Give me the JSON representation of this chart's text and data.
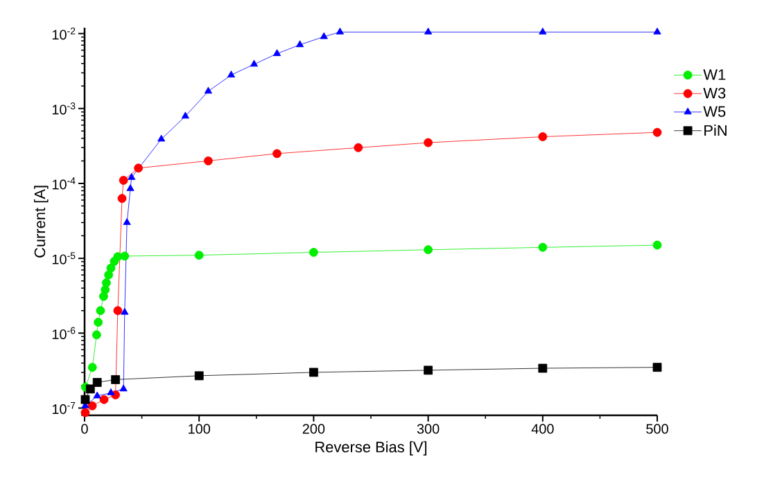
{
  "chart_data": {
    "type": "line",
    "xlabel": "Reverse Bias  [V]",
    "ylabel": "Current  [A]",
    "log": "y",
    "legend": "right",
    "line_style": "solid",
    "xlim": [
      0,
      500
    ],
    "xticks": [
      0,
      100,
      200,
      300,
      400,
      500
    ],
    "ylim": [
      8e-08,
      0.012
    ],
    "yticks": [
      {
        "value": 1e-07,
        "label": "10$^{-7}$"
      },
      {
        "value": 1e-06,
        "label": "10$^{-6}$"
      },
      {
        "value": 1e-05,
        "label": "10$^{-5}$"
      },
      {
        "value": 0.0001,
        "label": "10$^{-4}$"
      },
      {
        "value": 0.001,
        "label": "10$^{-3}$"
      },
      {
        "value": 0.01,
        "label": "10$^{-2}$"
      }
    ],
    "series": [
      {
        "name": "W1",
        "color": "#00ee00",
        "marker": "circle",
        "x": [
          0.8,
          6.8,
          10.5,
          11.9,
          13.9,
          16.6,
          18,
          19,
          21,
          23,
          26,
          29,
          35,
          100,
          200,
          300,
          400,
          500
        ],
        "values": [
          1.9e-07,
          3.5e-07,
          9.5e-07,
          1.4e-06,
          2e-06,
          3.1e-06,
          3.8e-06,
          4.7e-06,
          6e-06,
          7.4e-06,
          9.1e-06,
          1.05e-05,
          1.07e-05,
          1.1e-05,
          1.2e-05,
          1.3e-05,
          1.4e-05,
          1.5e-05
        ]
      },
      {
        "name": "W3",
        "color": "#ff0000",
        "marker": "circle",
        "x": [
          0.6,
          6.7,
          17,
          27,
          29,
          32.7,
          34,
          47,
          108,
          168,
          239,
          300,
          400,
          500
        ],
        "values": [
          8.7e-08,
          1.07e-07,
          1.3e-07,
          1.5e-07,
          2e-06,
          6.3e-05,
          0.00011,
          0.00016,
          0.0002,
          0.00025,
          0.0003,
          0.00035,
          0.00042,
          0.00048
        ]
      },
      {
        "name": "W5",
        "color": "#0000ff",
        "marker": "triangle",
        "x": [
          0.6,
          11,
          23,
          34,
          35,
          37,
          40,
          41,
          67,
          88,
          108,
          128,
          148,
          168,
          188,
          209,
          223,
          300,
          400,
          500
        ],
        "values": [
          1.07e-07,
          1.45e-07,
          1.6e-07,
          1.8e-07,
          1.9e-06,
          3e-05,
          8.5e-05,
          0.00012,
          0.00039,
          0.00079,
          0.0017,
          0.0028,
          0.0039,
          0.0054,
          0.0071,
          0.0091,
          0.0105,
          0.0105,
          0.0105,
          0.0105
        ]
      },
      {
        "name": "PiN",
        "color": "#000000",
        "marker": "square",
        "x": [
          0.6,
          5,
          11,
          27,
          100,
          200,
          300,
          400,
          500
        ],
        "values": [
          1.3e-07,
          1.8e-07,
          2.2e-07,
          2.4e-07,
          2.7e-07,
          3e-07,
          3.2e-07,
          3.4e-07,
          3.5e-07
        ]
      }
    ]
  }
}
